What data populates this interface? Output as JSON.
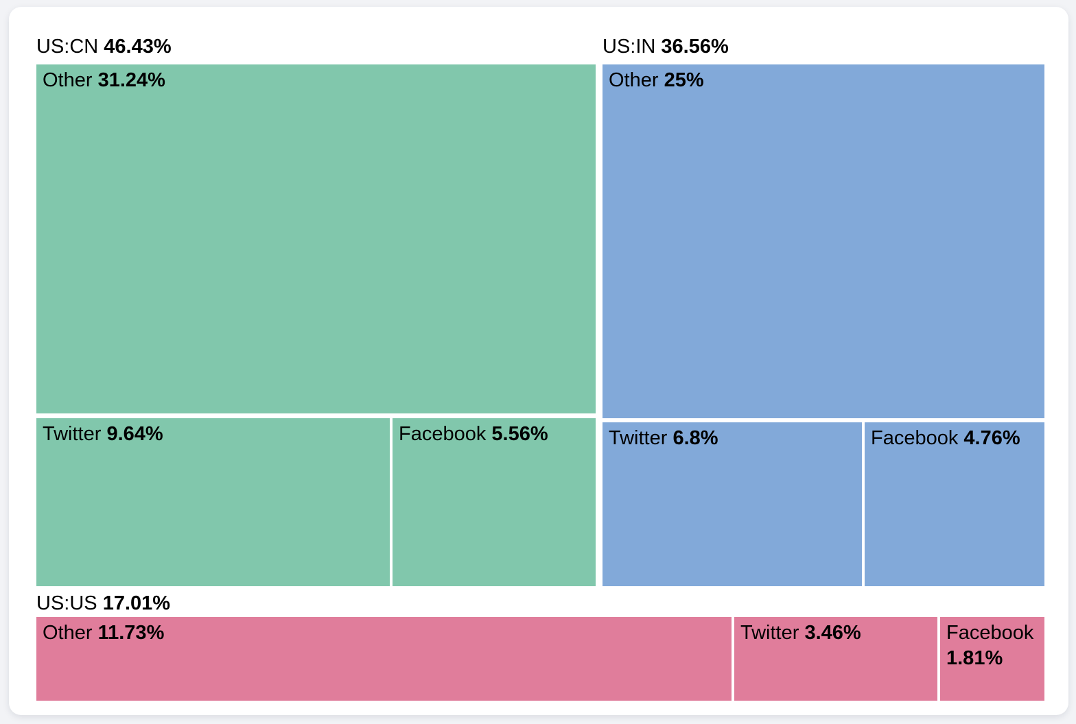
{
  "chart_data": {
    "type": "treemap",
    "title": "",
    "unit": "percent share",
    "layout_hint": "treemap with group header labels above each group; white gaps between tiles; black labels, bold percentages",
    "groups": [
      {
        "name": "US:CN",
        "value": 46.43,
        "display": "46.43%",
        "color": "#81c7ac",
        "children": [
          {
            "name": "Other",
            "value": 31.24,
            "display": "31.24%"
          },
          {
            "name": "Twitter",
            "value": 9.64,
            "display": "9.64%"
          },
          {
            "name": "Facebook",
            "value": 5.56,
            "display": "5.56%"
          }
        ]
      },
      {
        "name": "US:IN",
        "value": 36.56,
        "display": "36.56%",
        "color": "#82a9d9",
        "children": [
          {
            "name": "Other",
            "value": 25,
            "display": "25%"
          },
          {
            "name": "Twitter",
            "value": 6.8,
            "display": "6.8%"
          },
          {
            "name": "Facebook",
            "value": 4.76,
            "display": "4.76%"
          }
        ]
      },
      {
        "name": "US:US",
        "value": 17.01,
        "display": "17.01%",
        "color": "#e07d9b",
        "children": [
          {
            "name": "Other",
            "value": 11.73,
            "display": "11.73%"
          },
          {
            "name": "Twitter",
            "value": 3.46,
            "display": "3.46%"
          },
          {
            "name": "Facebook",
            "value": 1.81,
            "display": "1.81%"
          }
        ]
      }
    ],
    "colors": {
      "us_cn": "#81c7ac",
      "us_in": "#82a9d9",
      "us_us": "#e07d9b",
      "text": "#000000",
      "card_background": "#ffffff",
      "page_background": "#f2f3f6"
    }
  }
}
